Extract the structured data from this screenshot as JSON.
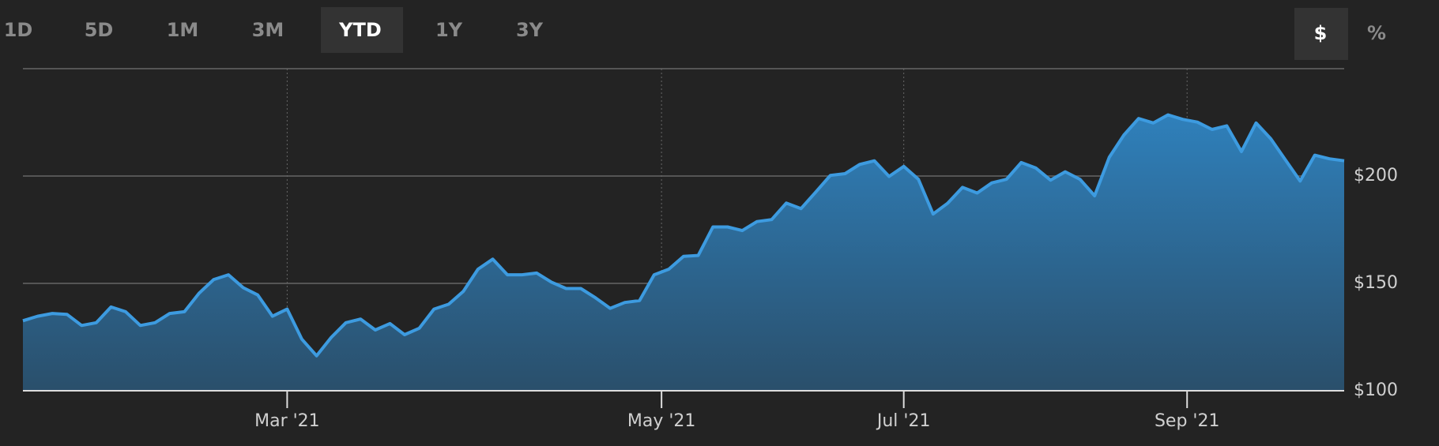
{
  "toolbar": {
    "ranges": [
      "1D",
      "5D",
      "1M",
      "3M",
      "YTD",
      "1Y",
      "3Y"
    ],
    "selected_range": "YTD",
    "units": [
      "$",
      "%"
    ],
    "selected_unit": "$"
  },
  "chart_data": {
    "type": "area",
    "color": "#3d9be0",
    "values": [
      132.6,
      134.7,
      136,
      135.6,
      130.4,
      131.7,
      139,
      136.8,
      130.4,
      131.7,
      136,
      136.8,
      145.4,
      151.8,
      154,
      148,
      144.6,
      134.7,
      138,
      124,
      116.3,
      124.8,
      131.7,
      133.4,
      128.3,
      131.3,
      126.1,
      129.1,
      138,
      140.3,
      146.3,
      156.6,
      161.3,
      154,
      154,
      154.8,
      150.6,
      147.6,
      147.6,
      143.3,
      138.4,
      141.1,
      142,
      154,
      156.6,
      162.6,
      163,
      176.3,
      176.3,
      174.6,
      178.8,
      179.7,
      187.4,
      184.8,
      192.5,
      200.3,
      201.1,
      205.4,
      207.1,
      199.8,
      204.5,
      198.5,
      182.3,
      187.4,
      194.7,
      192.1,
      196.8,
      198.5,
      206.3,
      203.7,
      198.1,
      202,
      198.5,
      190.8,
      208.8,
      219.1,
      226.8,
      224.7,
      228.5,
      226.4,
      225.1,
      221.7,
      223.4,
      211.4,
      224.7,
      217.4,
      207.5,
      197.7,
      209.7,
      208,
      207.1
    ],
    "xlim": [
      0,
      90
    ],
    "xticks": [
      {
        "value": 18,
        "label": "Mar '21"
      },
      {
        "value": 43.5,
        "label": "May '21"
      },
      {
        "value": 60,
        "label": "Jul '21"
      },
      {
        "value": 79.3,
        "label": "Sep '21"
      }
    ],
    "ylim": [
      100,
      250
    ],
    "yticks": [
      {
        "value": 100,
        "label": "$100"
      },
      {
        "value": 150,
        "label": "$150"
      },
      {
        "value": 200,
        "label": "$200"
      }
    ],
    "grid": true
  }
}
